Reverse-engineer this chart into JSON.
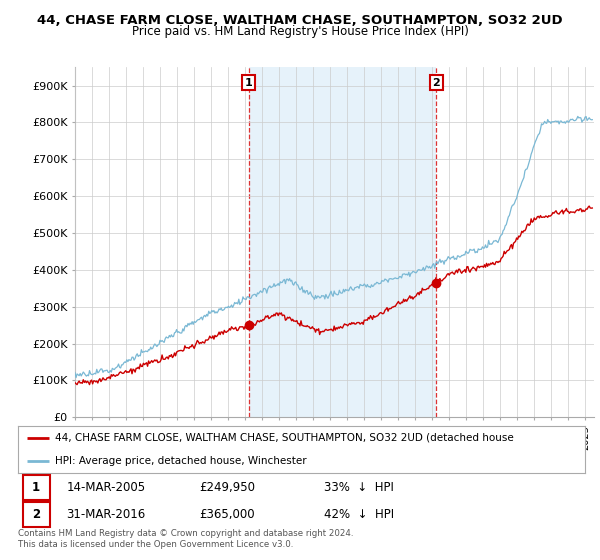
{
  "title": "44, CHASE FARM CLOSE, WALTHAM CHASE, SOUTHAMPTON, SO32 2UD",
  "subtitle": "Price paid vs. HM Land Registry's House Price Index (HPI)",
  "ylabel_ticks": [
    "£0",
    "£100K",
    "£200K",
    "£300K",
    "£400K",
    "£500K",
    "£600K",
    "£700K",
    "£800K",
    "£900K"
  ],
  "ytick_values": [
    0,
    100000,
    200000,
    300000,
    400000,
    500000,
    600000,
    700000,
    800000,
    900000
  ],
  "ylim": [
    0,
    950000
  ],
  "xlim_start": 1995.0,
  "xlim_end": 2025.5,
  "hpi_color": "#7ab8d4",
  "hpi_fill_color": "#d6eaf8",
  "price_color": "#cc0000",
  "marker1_date": 2005.2,
  "marker1_price": 249950,
  "marker2_date": 2016.24,
  "marker2_price": 365000,
  "legend_line1": "44, CHASE FARM CLOSE, WALTHAM CHASE, SOUTHAMPTON, SO32 2UD (detached house",
  "legend_line2": "HPI: Average price, detached house, Winchester",
  "footer": "Contains HM Land Registry data © Crown copyright and database right 2024.\nThis data is licensed under the Open Government Licence v3.0.",
  "bg_color": "#ffffff",
  "plot_bg_color": "#ffffff",
  "grid_color": "#cccccc"
}
